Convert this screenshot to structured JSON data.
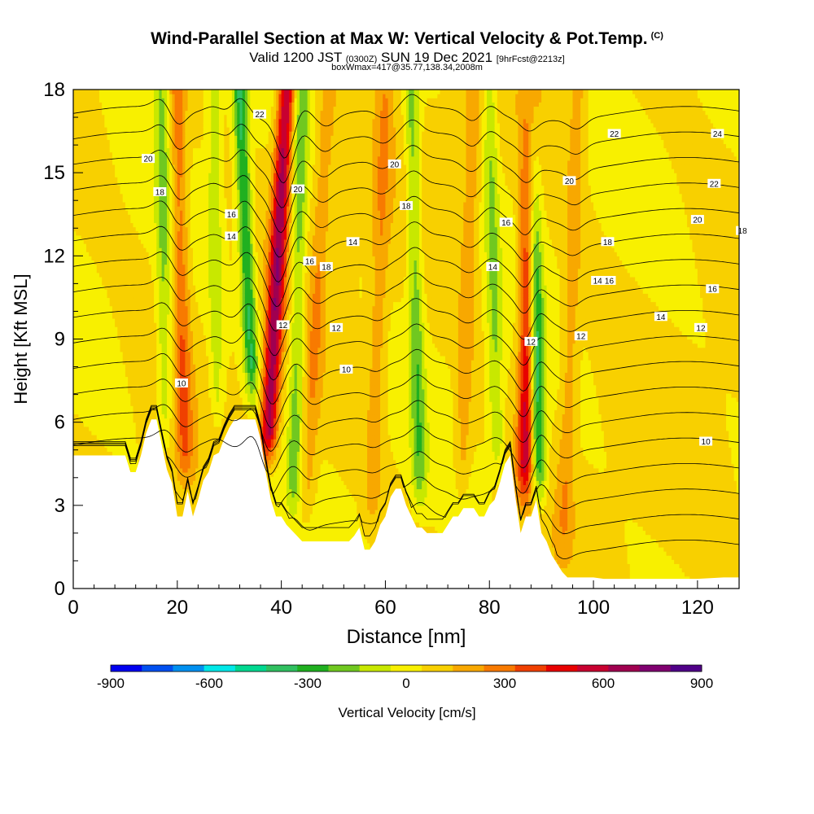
{
  "header": {
    "title": "Wind-Parallel Section at Max W: Vertical Velocity & Pot.Temp.",
    "copyright": "(C)",
    "valid_prefix": "Valid 1200 JST",
    "valid_utc": "(0300Z)",
    "valid_date": "SUN 19 Dec 2021",
    "forecast": "[9hrFcst@2213z]",
    "boxinfo": "boxWmax=417@35.77,138.34,2008m"
  },
  "chart_data": {
    "type": "heatmap",
    "xlabel": "Distance [nm]",
    "ylabel": "Height [Kft MSL]",
    "xlim": [
      0,
      128
    ],
    "ylim": [
      0,
      18
    ],
    "x_ticks": [
      0,
      20,
      40,
      60,
      80,
      100,
      120
    ],
    "y_ticks": [
      0,
      3,
      6,
      9,
      12,
      15,
      18
    ],
    "colorbar": {
      "label": "Vertical Velocity [cm/s]",
      "tick_labels": [
        "-900",
        "-600",
        "-300",
        "0",
        "300",
        "600",
        "900"
      ],
      "range": [
        -900,
        900
      ],
      "colors": [
        "#0000f0",
        "#0050f0",
        "#0090f0",
        "#00e8e8",
        "#00d890",
        "#30c060",
        "#20b020",
        "#70c820",
        "#c8e800",
        "#f8f000",
        "#f8d000",
        "#f8a800",
        "#f87a00",
        "#f04000",
        "#e80000",
        "#c80030",
        "#a00050",
        "#800070",
        "#500088"
      ]
    },
    "terrain_profile": {
      "x": [
        0,
        10,
        11,
        12,
        13,
        14,
        15,
        16,
        17,
        18,
        19,
        20,
        21,
        22,
        23,
        24,
        25,
        26,
        27,
        28,
        29,
        30,
        31,
        32,
        33,
        34,
        35,
        36,
        37,
        38,
        39,
        40,
        41,
        42,
        43,
        44,
        45,
        46,
        47,
        48,
        49,
        50,
        51,
        52,
        53,
        54,
        55,
        56,
        57,
        58,
        59,
        60,
        61,
        62,
        63,
        64,
        65,
        66,
        67,
        68,
        69,
        70,
        71,
        72,
        73,
        74,
        75,
        76,
        77,
        78,
        79,
        80,
        81,
        82,
        83,
        84,
        85,
        86,
        87,
        88,
        89,
        90,
        91,
        92,
        93,
        94,
        95,
        96,
        97,
        98,
        99,
        100,
        102,
        105,
        110,
        115,
        120,
        125,
        128
      ],
      "kft": [
        4.8,
        4.8,
        4.2,
        4.2,
        4.8,
        5.6,
        6.1,
        6.1,
        5.2,
        4.3,
        3.8,
        2.6,
        2.6,
        3.5,
        2.6,
        3.2,
        3.9,
        4.2,
        4.8,
        4.9,
        5.4,
        5.8,
        6.1,
        6.1,
        6.1,
        6.1,
        6.1,
        5.4,
        4.2,
        3.2,
        2.6,
        2.6,
        2.3,
        2.1,
        1.9,
        1.7,
        1.7,
        1.7,
        1.7,
        1.7,
        1.7,
        1.7,
        1.7,
        1.7,
        1.7,
        1.9,
        2.2,
        1.4,
        1.4,
        1.7,
        2.3,
        2.6,
        3.3,
        3.6,
        3.6,
        3.0,
        2.6,
        2.2,
        2.2,
        2.0,
        2.0,
        2.0,
        2.0,
        2.3,
        2.6,
        2.6,
        2.9,
        2.9,
        2.9,
        2.6,
        2.6,
        3.0,
        3.2,
        3.8,
        4.5,
        4.8,
        3.3,
        2.0,
        2.6,
        2.6,
        3.2,
        2.0,
        1.7,
        1.2,
        0.9,
        0.6,
        0.4,
        0.4,
        0.4,
        0.4,
        0.4,
        0.4,
        0.35,
        0.35,
        0.35,
        0.35,
        0.35,
        0.4,
        0.4
      ]
    },
    "updraft_bands": [
      {
        "x_bottom": 36,
        "x_top": 41,
        "w_max": 600
      },
      {
        "x_bottom": 86.5,
        "x_top": 88,
        "w_max": 500
      },
      {
        "x_bottom": 22,
        "x_top": 20,
        "w_max": 250
      },
      {
        "x_bottom": 44,
        "x_top": 49,
        "w_max": 150
      },
      {
        "x_bottom": 57,
        "x_top": 60,
        "w_max": 150
      },
      {
        "x_bottom": 74,
        "x_top": 77,
        "w_max": 150
      },
      {
        "x_bottom": 94,
        "x_top": 97,
        "w_max": 150
      }
    ],
    "downdraft_bands": [
      {
        "x_bottom": 36,
        "x_top": 32,
        "w_min": -400
      },
      {
        "x_bottom": 90,
        "x_top": 88,
        "w_min": -450
      },
      {
        "x_bottom": 18,
        "x_top": 17,
        "w_min": -200
      },
      {
        "x_bottom": 28,
        "x_top": 27,
        "w_min": -150
      },
      {
        "x_bottom": 42,
        "x_top": 44,
        "w_min": -250
      },
      {
        "x_bottom": 67,
        "x_top": 65,
        "w_min": -250
      },
      {
        "x_bottom": 82,
        "x_top": 80,
        "w_min": -200
      }
    ],
    "isentrope_levels_c": [
      8,
      9,
      10,
      11,
      12,
      13,
      14,
      15,
      16,
      17,
      18,
      19,
      20,
      21,
      22,
      23,
      24,
      25
    ],
    "contour_labels": [
      {
        "text": "22",
        "x": 11.2,
        "y": 17.1
      },
      {
        "text": "20",
        "x": 4.5,
        "y": 15.5
      },
      {
        "text": "18",
        "x": 5.2,
        "y": 14.3
      },
      {
        "text": "16",
        "x": 9.5,
        "y": 13.5
      },
      {
        "text": "14",
        "x": 9.5,
        "y": 12.7
      },
      {
        "text": "10",
        "x": 6.5,
        "y": 7.4
      },
      {
        "text": "20",
        "x": 13.5,
        "y": 14.4
      },
      {
        "text": "16",
        "x": 14.2,
        "y": 11.8
      },
      {
        "text": "12",
        "x": 12.6,
        "y": 9.5
      },
      {
        "text": "18",
        "x": 15.2,
        "y": 11.6
      },
      {
        "text": "14",
        "x": 16.8,
        "y": 12.5
      },
      {
        "text": "12",
        "x": 15.8,
        "y": 9.4
      },
      {
        "text": "10",
        "x": 16.4,
        "y": 7.9
      },
      {
        "text": "20",
        "x": 19.3,
        "y": 15.3
      },
      {
        "text": "18",
        "x": 20.0,
        "y": 13.8
      },
      {
        "text": "16",
        "x": 26.0,
        "y": 13.2
      },
      {
        "text": "14",
        "x": 25.2,
        "y": 11.6
      },
      {
        "text": "12",
        "x": 27.5,
        "y": 8.9
      },
      {
        "text": "22",
        "x": 32.5,
        "y": 16.4
      },
      {
        "text": "20",
        "x": 29.8,
        "y": 14.7
      },
      {
        "text": "18",
        "x": 32.1,
        "y": 12.5
      },
      {
        "text": "16",
        "x": 32.2,
        "y": 11.1
      },
      {
        "text": "14",
        "x": 31.5,
        "y": 11.1
      },
      {
        "text": "12",
        "x": 30.5,
        "y": 9.1
      },
      {
        "text": "24",
        "x": 38.7,
        "y": 16.4
      },
      {
        "text": "22",
        "x": 38.5,
        "y": 14.6
      },
      {
        "text": "20",
        "x": 37.5,
        "y": 13.3
      },
      {
        "text": "18",
        "x": 40.2,
        "y": 12.9
      },
      {
        "text": "16",
        "x": 38.4,
        "y": 10.8
      },
      {
        "text": "14",
        "x": 35.3,
        "y": 9.8
      },
      {
        "text": "12",
        "x": 37.7,
        "y": 9.4
      },
      {
        "text": "10",
        "x": 38.0,
        "y": 5.3
      }
    ]
  }
}
